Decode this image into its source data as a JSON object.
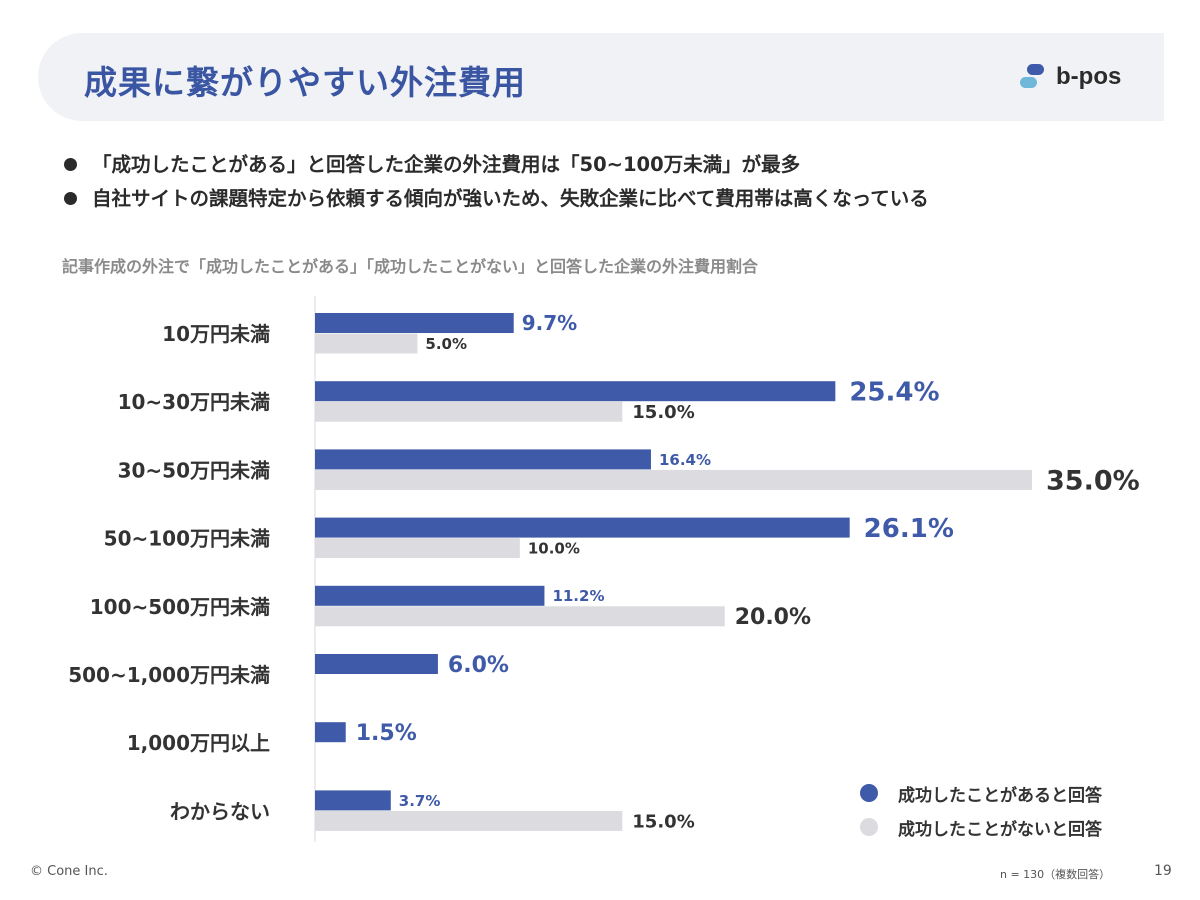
{
  "header": {
    "title": "成果に繋がりやすい外注費用",
    "logo_text": "b-pos",
    "logo_icon": "b-pos-logo-icon"
  },
  "bullets": [
    "「成功したことがある」と回答した企業の外注費用は「50~100万未満」が最多",
    "自社サイトの課題特定から依頼する傾向が強いため、失敗企業に比べて費用帯は高くなっている"
  ],
  "chart_data": {
    "type": "bar",
    "orientation": "horizontal",
    "title": "記事作成の外注で「成功したことがある」「成功したことがない」と回答した企業の外注費用割合",
    "categories": [
      "10万円未満",
      "10~30万円未満",
      "30~50万円未満",
      "50~100万円未満",
      "100~500万円未満",
      "500~1,000万円未満",
      "1,000万円以上",
      "わからない"
    ],
    "series": [
      {
        "name": "成功したことがあると回答",
        "color": "#3e5aa8",
        "values": [
          9.7,
          25.4,
          16.4,
          26.1,
          11.2,
          6.0,
          1.5,
          3.7
        ],
        "labels": [
          "9.7%",
          "25.4%",
          "16.4%",
          "26.1%",
          "11.2%",
          "6.0%",
          "1.5%",
          "3.7%"
        ]
      },
      {
        "name": "成功したことがないと回答",
        "color": "#dcdbdf",
        "values": [
          5.0,
          15.0,
          35.0,
          10.0,
          20.0,
          0,
          0,
          15.0
        ],
        "labels": [
          "5.0%",
          "15.0%",
          "35.0%",
          "10.0%",
          "20.0%",
          "",
          "",
          "15.0%"
        ]
      }
    ],
    "xlim": [
      0,
      35
    ],
    "unit": "%",
    "legend_position": "bottom-right",
    "grid": false
  },
  "footer": {
    "copyright": "© Cone Inc.",
    "note": "n = 130（複数回答）",
    "page": "19"
  }
}
